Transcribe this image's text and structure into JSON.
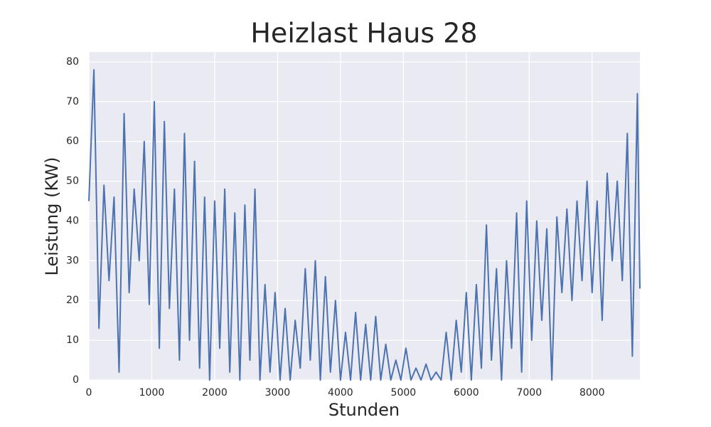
{
  "chart_data": {
    "type": "line",
    "title": "Heizlast Haus 28",
    "x_label": "Stunden",
    "y_label": "Leistung (KW)",
    "x": [
      0,
      80,
      160,
      240,
      320,
      400,
      480,
      560,
      640,
      720,
      800,
      880,
      960,
      1040,
      1120,
      1200,
      1280,
      1360,
      1440,
      1520,
      1600,
      1680,
      1760,
      1840,
      1920,
      2000,
      2080,
      2160,
      2240,
      2320,
      2400,
      2480,
      2560,
      2640,
      2720,
      2800,
      2880,
      2960,
      3040,
      3120,
      3200,
      3280,
      3360,
      3440,
      3520,
      3600,
      3680,
      3760,
      3840,
      3920,
      4000,
      4080,
      4160,
      4240,
      4320,
      4400,
      4480,
      4560,
      4640,
      4720,
      4800,
      4880,
      4960,
      5040,
      5120,
      5200,
      5280,
      5360,
      5440,
      5520,
      5600,
      5680,
      5760,
      5840,
      5920,
      6000,
      6080,
      6160,
      6240,
      6320,
      6400,
      6480,
      6560,
      6640,
      6720,
      6800,
      6880,
      6960,
      7040,
      7120,
      7200,
      7280,
      7360,
      7440,
      7520,
      7600,
      7680,
      7760,
      7840,
      7920,
      8000,
      8080,
      8160,
      8240,
      8320,
      8400,
      8480,
      8560,
      8640,
      8720,
      8760
    ],
    "values": [
      45,
      78,
      13,
      49,
      25,
      46,
      2,
      67,
      22,
      48,
      30,
      60,
      19,
      70,
      8,
      65,
      18,
      48,
      5,
      62,
      10,
      55,
      3,
      46,
      0,
      45,
      8,
      48,
      2,
      42,
      0,
      44,
      5,
      48,
      0,
      24,
      2,
      22,
      0,
      18,
      0,
      15,
      3,
      28,
      5,
      30,
      0,
      26,
      2,
      20,
      0,
      12,
      0,
      17,
      0,
      14,
      0,
      16,
      0,
      9,
      0,
      5,
      0,
      8,
      0,
      3,
      0,
      4,
      0,
      2,
      0,
      12,
      0,
      15,
      2,
      22,
      0,
      24,
      3,
      39,
      5,
      28,
      0,
      30,
      8,
      42,
      2,
      45,
      10,
      40,
      15,
      38,
      0,
      41,
      22,
      43,
      20,
      45,
      25,
      50,
      22,
      45,
      15,
      52,
      30,
      50,
      25,
      62,
      6,
      72,
      23
    ],
    "color": "#4c72b0",
    "xlim": [
      0,
      8760
    ],
    "ylim": [
      0,
      82.5
    ],
    "xticks": [
      0,
      1000,
      2000,
      3000,
      4000,
      5000,
      6000,
      7000,
      8000
    ],
    "yticks": [
      0,
      10,
      20,
      30,
      40,
      50,
      60,
      70,
      80
    ],
    "grid": true
  }
}
